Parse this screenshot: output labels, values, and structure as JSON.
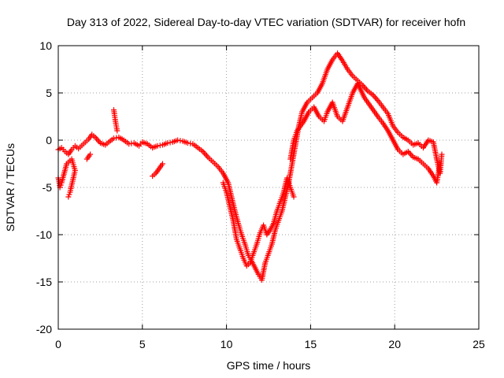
{
  "chart_data": {
    "type": "scatter",
    "title": "Day 313 of 2022, Sidereal Day-to-day VTEC variation (SDTVAR) for receiver hofn",
    "xlabel": "GPS time / hours",
    "ylabel": "SDTVAR / TECUs",
    "xlim": [
      0,
      25
    ],
    "ylim": [
      -20,
      10
    ],
    "xticks": [
      0,
      5,
      10,
      15,
      20,
      25
    ],
    "yticks": [
      -20,
      -15,
      -10,
      -5,
      0,
      5,
      10
    ],
    "grid": true,
    "marker": "+",
    "color": "#ff0000",
    "series": [
      {
        "name": "trace-main",
        "points": [
          [
            0.0,
            -1.0
          ],
          [
            0.2,
            -0.8
          ],
          [
            0.4,
            -1.2
          ],
          [
            0.6,
            -1.5
          ],
          [
            0.8,
            -1.0
          ],
          [
            1.0,
            -0.6
          ],
          [
            1.2,
            -0.9
          ],
          [
            1.5,
            -0.4
          ],
          [
            1.8,
            0.1
          ],
          [
            2.0,
            0.6
          ],
          [
            2.2,
            0.3
          ],
          [
            2.5,
            -0.3
          ],
          [
            2.8,
            -0.5
          ],
          [
            3.0,
            -0.2
          ],
          [
            3.3,
            0.2
          ],
          [
            3.6,
            0.3
          ],
          [
            3.9,
            0.0
          ],
          [
            4.2,
            -0.4
          ],
          [
            4.5,
            -0.3
          ],
          [
            4.8,
            -0.6
          ],
          [
            5.0,
            -0.2
          ],
          [
            5.3,
            -0.4
          ],
          [
            5.6,
            -0.8
          ],
          [
            5.9,
            -0.6
          ],
          [
            6.2,
            -0.5
          ],
          [
            6.5,
            -0.3
          ],
          [
            6.8,
            -0.2
          ],
          [
            7.1,
            0.0
          ],
          [
            7.4,
            -0.1
          ],
          [
            7.7,
            -0.3
          ],
          [
            8.0,
            -0.4
          ],
          [
            8.3,
            -0.8
          ],
          [
            8.6,
            -1.2
          ],
          [
            8.9,
            -1.8
          ],
          [
            9.2,
            -2.3
          ],
          [
            9.5,
            -2.8
          ],
          [
            9.8,
            -3.5
          ],
          [
            10.1,
            -4.5
          ],
          [
            10.3,
            -6.0
          ],
          [
            10.5,
            -7.5
          ],
          [
            10.7,
            -8.8
          ],
          [
            10.9,
            -10.0
          ],
          [
            11.1,
            -11.0
          ],
          [
            11.3,
            -12.2
          ],
          [
            11.5,
            -12.8
          ],
          [
            11.7,
            -13.5
          ],
          [
            11.9,
            -14.2
          ],
          [
            12.1,
            -14.8
          ],
          [
            12.3,
            -13.0
          ],
          [
            12.5,
            -12.0
          ],
          [
            12.7,
            -11.0
          ],
          [
            12.9,
            -9.5
          ],
          [
            13.1,
            -8.5
          ],
          [
            13.3,
            -7.5
          ],
          [
            13.5,
            -6.0
          ],
          [
            13.7,
            -4.5
          ],
          [
            13.9,
            -2.5
          ],
          [
            14.1,
            -0.5
          ],
          [
            14.3,
            1.5
          ],
          [
            14.5,
            3.0
          ],
          [
            14.8,
            4.0
          ],
          [
            15.1,
            4.5
          ],
          [
            15.4,
            5.0
          ],
          [
            15.7,
            6.0
          ],
          [
            16.0,
            7.5
          ],
          [
            16.3,
            8.5
          ],
          [
            16.6,
            9.2
          ],
          [
            16.9,
            8.4
          ],
          [
            17.2,
            7.5
          ],
          [
            17.5,
            6.8
          ],
          [
            17.8,
            6.3
          ],
          [
            18.1,
            5.8
          ],
          [
            18.4,
            5.2
          ],
          [
            18.7,
            4.8
          ],
          [
            19.0,
            4.2
          ],
          [
            19.3,
            3.5
          ],
          [
            19.6,
            2.8
          ],
          [
            19.9,
            1.5
          ],
          [
            20.2,
            0.8
          ],
          [
            20.5,
            0.3
          ],
          [
            20.8,
            0.0
          ],
          [
            21.1,
            -0.5
          ],
          [
            21.4,
            -0.3
          ],
          [
            21.7,
            -0.8
          ],
          [
            22.0,
            0.0
          ],
          [
            22.3,
            -0.2
          ],
          [
            22.5,
            -2.0
          ],
          [
            22.7,
            -3.5
          ],
          [
            22.8,
            -1.5
          ]
        ]
      },
      {
        "name": "trace-secondary",
        "points": [
          [
            0.0,
            -4.0
          ],
          [
            0.1,
            -5.0
          ],
          [
            0.2,
            -4.5
          ],
          [
            0.5,
            -2.5
          ],
          [
            0.8,
            -2.0
          ],
          [
            1.0,
            -3.2
          ],
          [
            0.7,
            -5.5
          ],
          [
            0.6,
            -6.0
          ],
          [
            1.7,
            -2.0
          ],
          [
            1.9,
            -1.5
          ],
          [
            3.3,
            3.2
          ],
          [
            3.4,
            2.0
          ],
          [
            3.5,
            1.0
          ],
          [
            5.6,
            -3.8
          ],
          [
            5.8,
            -3.5
          ],
          [
            6.0,
            -3.0
          ],
          [
            6.2,
            -2.5
          ],
          [
            9.8,
            -4.5
          ],
          [
            10.0,
            -5.5
          ],
          [
            10.2,
            -7.0
          ],
          [
            10.4,
            -8.5
          ],
          [
            10.6,
            -10.5
          ],
          [
            10.8,
            -11.5
          ],
          [
            11.0,
            -12.5
          ],
          [
            11.2,
            -13.3
          ],
          [
            11.4,
            -13.0
          ],
          [
            11.6,
            -12.0
          ],
          [
            11.8,
            -11.0
          ],
          [
            12.0,
            -9.8
          ],
          [
            12.2,
            -9.0
          ],
          [
            12.4,
            -10.0
          ],
          [
            12.6,
            -9.5
          ],
          [
            12.8,
            -8.8
          ],
          [
            13.0,
            -7.5
          ],
          [
            13.2,
            -6.5
          ],
          [
            13.4,
            -5.5
          ],
          [
            13.6,
            -4.0
          ],
          [
            13.8,
            -5.0
          ],
          [
            14.0,
            -6.0
          ],
          [
            13.8,
            -2.0
          ],
          [
            14.0,
            0.0
          ],
          [
            14.2,
            1.0
          ],
          [
            14.6,
            2.0
          ],
          [
            14.9,
            3.0
          ],
          [
            15.2,
            3.5
          ],
          [
            15.5,
            2.5
          ],
          [
            15.8,
            2.0
          ],
          [
            16.0,
            3.0
          ],
          [
            16.3,
            4.0
          ],
          [
            16.6,
            2.5
          ],
          [
            16.9,
            2.0
          ],
          [
            17.2,
            3.5
          ],
          [
            17.5,
            5.0
          ],
          [
            17.8,
            6.0
          ],
          [
            18.2,
            4.5
          ],
          [
            18.6,
            3.5
          ],
          [
            19.0,
            2.5
          ],
          [
            19.3,
            1.8
          ],
          [
            19.6,
            1.0
          ],
          [
            19.9,
            0.0
          ],
          [
            20.2,
            -1.0
          ],
          [
            20.5,
            -1.5
          ],
          [
            20.8,
            -1.2
          ],
          [
            21.1,
            -1.8
          ],
          [
            21.4,
            -2.0
          ],
          [
            21.7,
            -2.5
          ],
          [
            22.0,
            -3.0
          ],
          [
            22.3,
            -3.8
          ],
          [
            22.5,
            -4.5
          ],
          [
            22.7,
            -2.5
          ]
        ]
      }
    ]
  }
}
